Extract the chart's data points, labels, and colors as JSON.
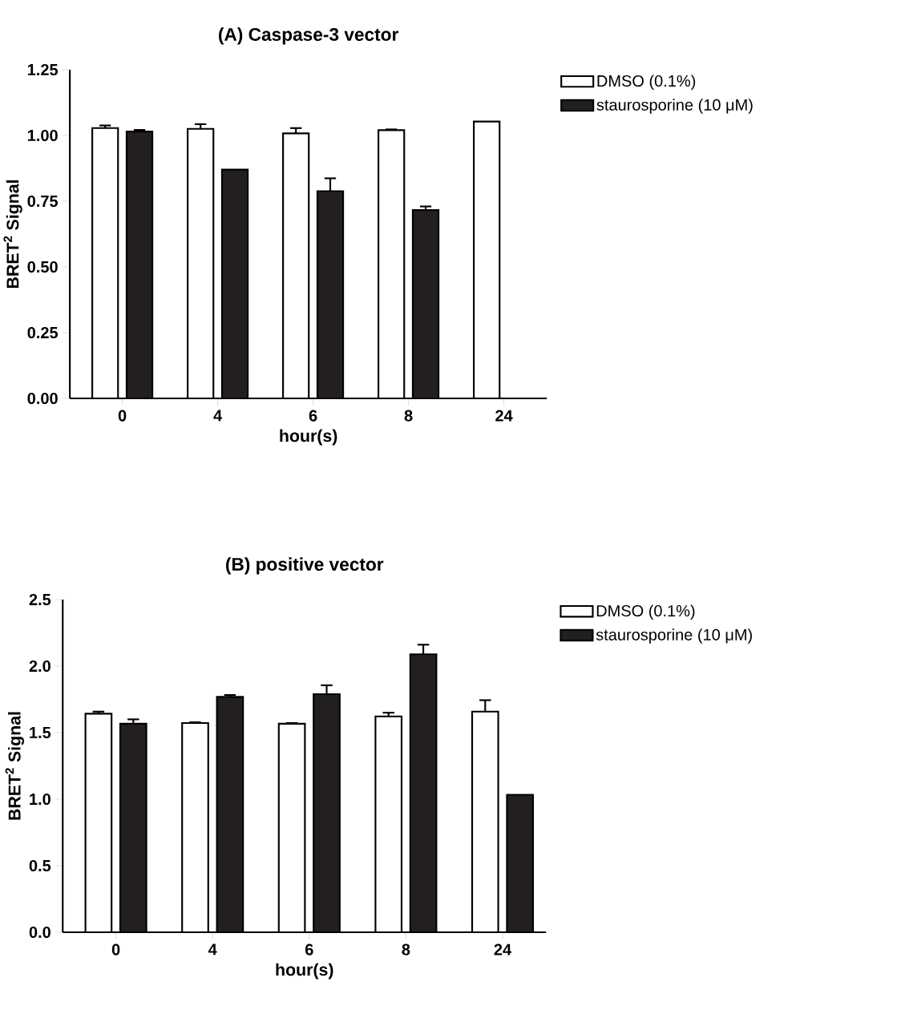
{
  "chart_data": [
    {
      "type": "bar",
      "title": "(A) Caspase-3 vector",
      "xlabel": "hour(s)",
      "ylabel": "BRET$^{2}$ Signal",
      "categories": [
        "0",
        "4",
        "6",
        "8",
        "24"
      ],
      "series": [
        {
          "name": "DMSO (0.1%)",
          "color": "#ffffff",
          "values": [
            1.028,
            1.025,
            1.008,
            1.02,
            1.053
          ],
          "errors": [
            0.01,
            0.018,
            0.02,
            0.003,
            null
          ]
        },
        {
          "name": "staurosporine (10 μM)",
          "color": "#231f20",
          "values": [
            1.015,
            0.87,
            0.788,
            0.716,
            null
          ],
          "errors": [
            0.006,
            null,
            0.049,
            0.014,
            null
          ]
        }
      ],
      "ylim": [
        0,
        1.25
      ],
      "yticks": [
        {
          "value": 0,
          "label": "0.00"
        },
        {
          "value": 0.25,
          "label": "0.25"
        },
        {
          "value": 0.5,
          "label": "0.50"
        },
        {
          "value": 0.75,
          "label": "0.75"
        },
        {
          "value": 1,
          "label": "1.00"
        },
        {
          "value": 1.25,
          "label": "1.25"
        }
      ],
      "legend": "right"
    },
    {
      "type": "bar",
      "title": "(B) positive vector",
      "xlabel": "hour(s)",
      "ylabel": "BRET$^{2}$ Signal",
      "categories": [
        "0",
        "4",
        "6",
        "8",
        "24"
      ],
      "series": [
        {
          "name": "DMSO (0.1%)",
          "color": "#ffffff",
          "values": [
            1.642,
            1.572,
            1.567,
            1.622,
            1.658
          ],
          "errors": [
            0.016,
            0.006,
            0.005,
            0.028,
            0.086
          ]
        },
        {
          "name": "staurosporine (10 μM)",
          "color": "#231f20",
          "values": [
            1.567,
            1.769,
            1.789,
            2.089,
            1.033
          ],
          "errors": [
            0.033,
            0.014,
            0.067,
            0.072,
            null
          ]
        }
      ],
      "ylim": [
        0,
        2.5
      ],
      "yticks": [
        {
          "value": 0,
          "label": "0.0"
        },
        {
          "value": 0.5,
          "label": "0.5"
        },
        {
          "value": 1,
          "label": "1.0"
        },
        {
          "value": 1.5,
          "label": "1.5"
        },
        {
          "value": 2,
          "label": "2.0"
        },
        {
          "value": 2.5,
          "label": "2.5"
        }
      ],
      "legend": "right"
    }
  ]
}
